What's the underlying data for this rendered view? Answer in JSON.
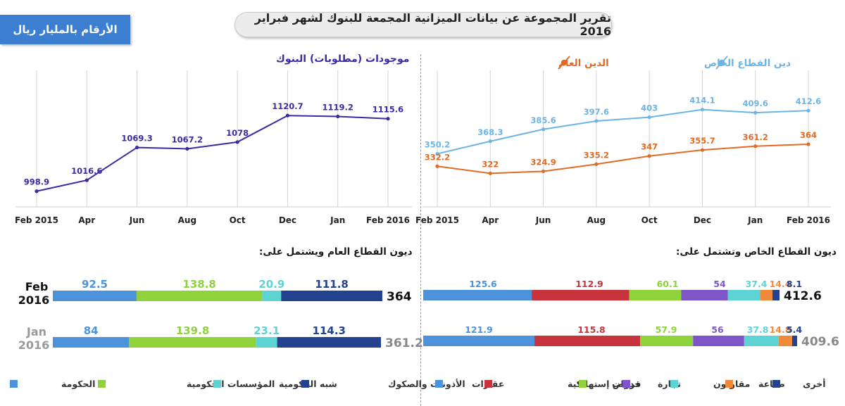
{
  "header": {
    "unit_label": "الأرقام بالمليار ريال",
    "title": "تقرير المجموعة عن بيانات الميزانية المجمعة للبنوك لشهر فبراير 2016"
  },
  "colors": {
    "assets_line": "#3a2aa3",
    "private_line": "#6cb4e6",
    "public_line": "#e26b24",
    "gov": "#4c93dc",
    "gov_inst": "#8fd23c",
    "semi_gov": "#5ed3d3",
    "bonds": "#22418e",
    "real_estate": "#4c93dc",
    "consumer": "#c8333e",
    "services": "#8fd23c",
    "trade": "#7d55c8",
    "contractors": "#5ed3d3",
    "industry": "#f08a3a",
    "other": "#22418e"
  },
  "chart_data": [
    {
      "type": "line",
      "title": "موجودات (مطلوبات) البنوك",
      "categories": [
        "Feb 2015",
        "Apr",
        "Jun",
        "Aug",
        "Oct",
        "Dec",
        "Jan",
        "Feb 2016"
      ],
      "series": [
        {
          "values": [
            998.9,
            1016.6,
            1069.3,
            1067.2,
            1078,
            1120.7,
            1119.2,
            1115.6
          ],
          "labels": [
            "998.9",
            "1016.6",
            "1069.3",
            "1067.2",
            "1078",
            "1120.7",
            "1119.2",
            "1115.6"
          ]
        }
      ],
      "ylim": [
        985,
        1130
      ],
      "grid": "vertical"
    },
    {
      "type": "line",
      "categories": [
        "Feb 2015",
        "Apr",
        "Jun",
        "Aug",
        "Oct",
        "Dec",
        "Jan",
        "Feb 2016"
      ],
      "series": [
        {
          "name": "دين القطاع الخاص",
          "values": [
            350.2,
            368.3,
            385.6,
            397.6,
            403,
            414.1,
            409.6,
            412.6
          ],
          "labels": [
            "350.2",
            "368.3",
            "385.6",
            "397.6",
            "403",
            "414.1",
            "409.6",
            "412.6"
          ]
        },
        {
          "name": "الدين العام",
          "values": [
            332.2,
            322,
            324.9,
            335.2,
            347,
            355.7,
            361.2,
            364
          ],
          "labels": [
            "332.2",
            "322",
            "324.9",
            "335.2",
            "347",
            "355.7",
            "361.2",
            "364"
          ]
        }
      ],
      "ylim": [
        302,
        425
      ],
      "grid": "vertical",
      "legend": "top"
    },
    {
      "type": "bar",
      "orientation": "horizontal-stacked",
      "title": "ديون القطاع العام ويشتمل على:",
      "categories": [
        "Feb 2016",
        "Jan 2016"
      ],
      "row_labels": [
        [
          "Feb",
          "2016"
        ],
        [
          "Jan",
          "2016"
        ]
      ],
      "totals": [
        "364",
        "361.2"
      ],
      "series": [
        {
          "name": "الحكومة",
          "values": [
            92.5,
            84
          ],
          "labels": [
            "92.5",
            "84"
          ]
        },
        {
          "name": "المؤسسات الحكومية",
          "values": [
            138.8,
            139.8
          ],
          "labels": [
            "138.8",
            "139.8"
          ]
        },
        {
          "name": "شبه الحكومية",
          "values": [
            20.9,
            23.1
          ],
          "labels": [
            "20.9",
            "23.1"
          ]
        },
        {
          "name": "الأذونات والصكوك",
          "values": [
            111.8,
            114.3
          ],
          "labels": [
            "111.8",
            "114.3"
          ]
        }
      ],
      "legend": "bottom"
    },
    {
      "type": "bar",
      "orientation": "horizontal-stacked",
      "title": "ديون القطاع الخاص وتشتمل على:",
      "categories": [
        "Feb 2016",
        "Jan 2016"
      ],
      "totals": [
        "412.6",
        "409.6"
      ],
      "series": [
        {
          "name": "عقارات",
          "values": [
            125.6,
            121.9
          ],
          "labels": [
            "125.6",
            "121.9"
          ]
        },
        {
          "name": "قروض إستهلاكية",
          "values": [
            112.9,
            115.8
          ],
          "labels": [
            "112.9",
            "115.8"
          ]
        },
        {
          "name": "خدمات",
          "values": [
            60.1,
            57.9
          ],
          "labels": [
            "60.1",
            "57.9"
          ]
        },
        {
          "name": "تجارة",
          "values": [
            54,
            56
          ],
          "labels": [
            "54",
            "56"
          ]
        },
        {
          "name": "مقاولون",
          "values": [
            37.4,
            37.8
          ],
          "labels": [
            "37.4",
            "37.8"
          ]
        },
        {
          "name": "صناعة",
          "values": [
            14.4,
            14.8
          ],
          "labels": [
            "14.4",
            "14.8"
          ]
        },
        {
          "name": "أخرى",
          "values": [
            8.1,
            5.4
          ],
          "labels": [
            "8.1",
            "5.4"
          ]
        }
      ],
      "legend": "bottom"
    }
  ]
}
